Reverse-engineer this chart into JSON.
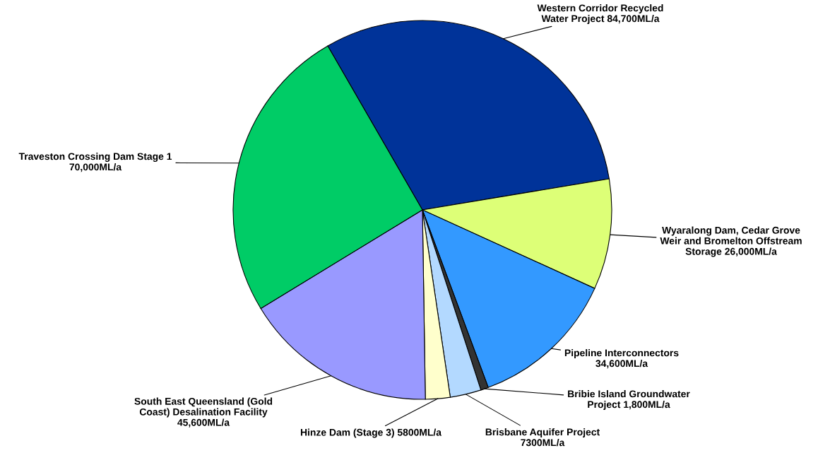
{
  "chart_data": {
    "type": "pie",
    "categories": [
      "Western Corridor Recycled Water Project",
      "Wyaralong Dam, Cedar Grove Weir and Bromelton Offstream Storage",
      "Pipeline Interconnectors",
      "Bribie Island Groundwater Project",
      "Brisbane Aquifer Project",
      "Hinze Dam (Stage 3)",
      "South East Queensland (Gold Coast) Desalination Facility",
      "Traveston Crossing Dam Stage 1"
    ],
    "values": [
      84700,
      26000,
      34600,
      1800,
      7300,
      5800,
      45600,
      70000
    ],
    "value_labels": [
      "84,700ML/a",
      "26,000ML/a",
      "34,600ML/a",
      "1,800ML/a",
      "7300ML/a",
      "5800ML/a",
      "45,600ML/a",
      "70,000ML/a"
    ],
    "colors": [
      "#003399",
      "#ddff77",
      "#3399ff",
      "#333333",
      "#b3d9ff",
      "#ffffcc",
      "#9999ff",
      "#00cc66"
    ],
    "legend": false
  }
}
